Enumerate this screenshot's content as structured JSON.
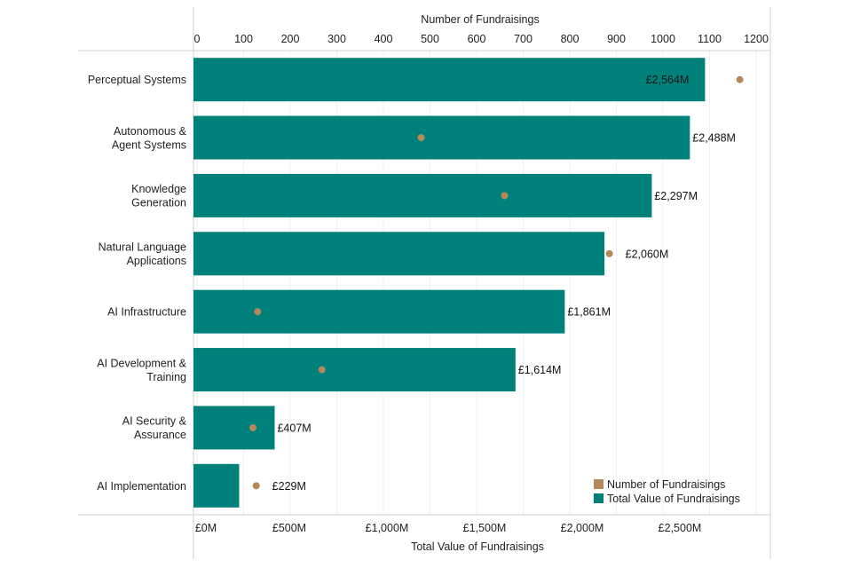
{
  "chart_data": {
    "type": "bar",
    "orientation": "horizontal",
    "categories": [
      [
        "Perceptual Systems"
      ],
      [
        "Autonomous &",
        "Agent Systems"
      ],
      [
        "Knowledge",
        "Generation"
      ],
      [
        "Natural Language",
        "Applications"
      ],
      [
        "AI Infrastructure"
      ],
      [
        "AI Development &",
        "Training"
      ],
      [
        "AI Security &",
        "Assurance"
      ],
      [
        "AI Implementation"
      ]
    ],
    "series": [
      {
        "name": "Total Value of Fundraisings",
        "axis": "bottom",
        "color": "#00807a",
        "values": [
          2564,
          2488,
          2297,
          2060,
          1861,
          1614,
          407,
          229
        ],
        "labels": [
          "£2,564M",
          "£2,488M",
          "£2,297M",
          "£2,060M",
          "£1,861M",
          "£1,614M",
          "£407M",
          "£229M"
        ]
      },
      {
        "name": "Number of Fundraisings",
        "axis": "top",
        "color": "#b5885a",
        "values": [
          1165,
          481,
          660,
          885,
          130,
          268,
          120,
          127
        ]
      }
    ],
    "bottom_axis": {
      "label": "Total Value of Fundraisings",
      "min": 0,
      "max": 2750,
      "ticks": [
        0,
        500,
        1000,
        1500,
        2000,
        2500
      ],
      "tick_labels": [
        "£0M",
        "£500M",
        "£1,000M",
        "£1,500M",
        "£2,000M",
        "£2,500M"
      ]
    },
    "top_axis": {
      "label": "Number of Fundraisings",
      "min": 0,
      "max": 1250,
      "ticks": [
        0,
        100,
        200,
        300,
        400,
        500,
        600,
        700,
        800,
        900,
        1000,
        1100,
        1200
      ],
      "tick_labels": [
        "0",
        "100",
        "200",
        "300",
        "400",
        "500",
        "600",
        "700",
        "800",
        "900",
        "1000",
        "1100",
        "1200"
      ]
    },
    "legend": {
      "position": "bottom-right",
      "items": [
        "Number of Fundraisings",
        "Total Value of Fundraisings"
      ]
    },
    "grid": true
  }
}
